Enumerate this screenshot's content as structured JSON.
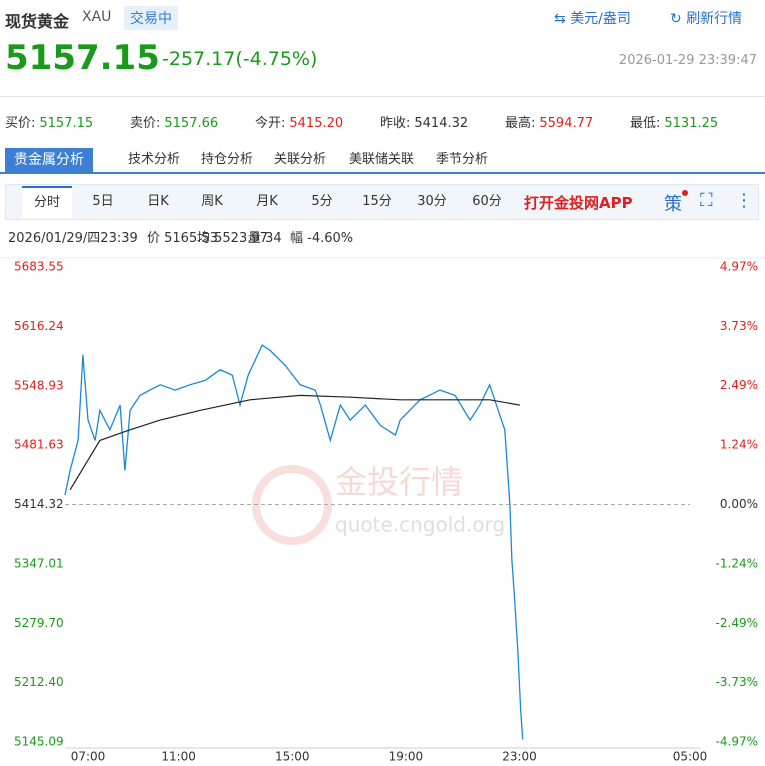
{
  "header": {
    "title": "现货黄金",
    "code": "XAU",
    "status": "交易中",
    "unit_link": "美元/盎司",
    "refresh": "刷新行情",
    "price": "5157.15",
    "change": "-257.17(-4.75%)",
    "timestamp": "2026-01-29 23:39:47"
  },
  "quotes": [
    {
      "label": "买价:",
      "value": "5157.15",
      "color": "#1a9a1a"
    },
    {
      "label": "卖价:",
      "value": "5157.66",
      "color": "#1a9a1a"
    },
    {
      "label": "今开:",
      "value": "5415.20",
      "color": "#e02020"
    },
    {
      "label": "昨收:",
      "value": "5414.32",
      "color": "#333333"
    },
    {
      "label": "最高:",
      "value": "5594.77",
      "color": "#e02020"
    },
    {
      "label": "最低:",
      "value": "5131.25",
      "color": "#1a9a1a"
    }
  ],
  "analysis_tabs": [
    "贵金属分析",
    "技术分析",
    "持仓分析",
    "关联分析",
    "美联储关联",
    "季节分析"
  ],
  "period_tabs": [
    "分时",
    "5日",
    "日K",
    "周K",
    "月K",
    "5分",
    "15分",
    "30分",
    "60分"
  ],
  "app_link": "打开金投网APP",
  "strategy": "策",
  "info": [
    "2026/01/29/四23:39",
    "价 5165.53",
    "均 5523.97",
    "量 34",
    "幅 -4.60%"
  ],
  "watermark": {
    "brand": "金投行情",
    "url": "quote.cngold.org"
  },
  "chart_data": {
    "type": "line",
    "xlim": [
      7,
      29
    ],
    "xticks": [
      {
        "value": 7,
        "label": "07:00"
      },
      {
        "value": 11,
        "label": "11:00"
      },
      {
        "value": 15,
        "label": "15:00"
      },
      {
        "value": 19,
        "label": "19:00"
      },
      {
        "value": 23,
        "label": "23:00"
      },
      {
        "value": 29,
        "label": "05:00"
      }
    ],
    "ylim": [
      5145.09,
      5683.55
    ],
    "yticks": [
      5145.09,
      {
        "value": 5212.4,
        "label": "5212.40"
      },
      {
        "value": 5279.7,
        "label": "5279.70"
      },
      5347.01,
      5414.32,
      5481.63,
      5548.93,
      5616.24,
      5683.55
    ],
    "y2lim": [
      -4.97,
      4.97
    ],
    "y2ticks": [
      {
        "value": -4.97,
        "label": "-4.97%"
      },
      {
        "value": -3.73,
        "label": "-3.73%"
      },
      {
        "value": -2.49,
        "label": "-2.49%"
      },
      {
        "value": -1.24,
        "label": "-1.24%"
      },
      {
        "value": 0,
        "label": "0.00%"
      },
      {
        "value": 1.24,
        "label": "1.24%"
      },
      {
        "value": 2.49,
        "label": "2.49%"
      },
      {
        "value": 3.73,
        "label": "3.73%"
      },
      {
        "value": 4.97,
        "label": "4.97%"
      }
    ],
    "series": [
      {
        "color": "#1a8ad4",
        "x": [
          7.0,
          7.18,
          7.46,
          7.63,
          7.81,
          8.06,
          8.23,
          8.58,
          8.94,
          9.11,
          9.29,
          9.64,
          9.99,
          10.35,
          10.88,
          11.4,
          11.93,
          12.46,
          12.89,
          13.16,
          13.45,
          13.94,
          14.22,
          14.75,
          15.28,
          15.81,
          15.99,
          16.34,
          16.69,
          17.04,
          17.57,
          18.1,
          18.63,
          18.8,
          19.5,
          20.2,
          20.73,
          21.26,
          21.6,
          21.95,
          22.3,
          22.48,
          22.66,
          22.73,
          22.83,
          22.94,
          23.04,
          23.11
        ],
        "values": [
          5425,
          5453,
          5487,
          5584,
          5510,
          5487,
          5521,
          5499,
          5527,
          5453,
          5521,
          5538,
          5544,
          5550,
          5544,
          5550,
          5555,
          5567,
          5561,
          5527,
          5561,
          5595,
          5589,
          5572,
          5550,
          5544,
          5527,
          5487,
          5527,
          5510,
          5527,
          5504,
          5493,
          5510,
          5533,
          5544,
          5538,
          5510,
          5527,
          5550,
          5516,
          5499,
          5414,
          5351,
          5306,
          5249,
          5181,
          5148
        ]
      },
      {
        "color": "#222222",
        "x": [
          7.18,
          8.23,
          9.29,
          10.35,
          11.75,
          13.51,
          15.28,
          17.04,
          18.8,
          20.55,
          21.95,
          23.01
        ],
        "values": [
          5431,
          5487,
          5499,
          5510,
          5521,
          5533,
          5538,
          5536,
          5533,
          5533,
          5533,
          5527
        ]
      }
    ]
  }
}
